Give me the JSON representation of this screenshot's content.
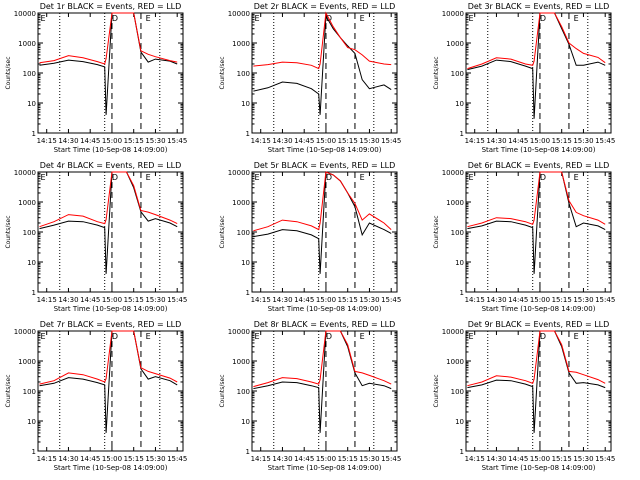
{
  "colors": {
    "events": "#000000",
    "lld": "#ff0000",
    "axis": "#000000",
    "background": "#ffffff"
  },
  "chart_data": [
    {
      "type": "line",
      "title": "Det 1r BLACK = Events, RED = LLD",
      "xlabel": "Start Time (10-Sep-08 14:09:00)",
      "ylabel": "Counts/sec",
      "y_scale": "log",
      "ylim": [
        1,
        10000
      ],
      "xlim": [
        "14:09",
        "15:49"
      ],
      "x_ticks": [
        "14:15",
        "14:30",
        "14:45",
        "15:00",
        "15:15",
        "15:30",
        "15:45"
      ],
      "y_ticks": [
        "1",
        "10",
        "100",
        "1000",
        "10000"
      ],
      "dotted_markers": [
        "14:24",
        "14:55",
        "15:33"
      ],
      "dashed_markers": [
        "15:00",
        "15:20"
      ],
      "annotations": [
        "E",
        "D",
        "E"
      ],
      "x": [
        "14:10",
        "14:20",
        "14:30",
        "14:40",
        "14:50",
        "14:55",
        "14:56",
        "15:00",
        "15:05",
        "15:10",
        "15:15",
        "15:20",
        "15:25",
        "15:30",
        "15:40",
        "15:45"
      ],
      "series": [
        {
          "values": [
            180,
            210,
            270,
            240,
            190,
            160,
            4,
            10000,
            10000,
            10000,
            10000,
            500,
            230,
            290,
            250,
            200
          ]
        },
        {
          "values": [
            220,
            260,
            380,
            320,
            240,
            200,
            300,
            10000,
            10000,
            10000,
            10000,
            550,
            420,
            350,
            260,
            230
          ]
        }
      ]
    },
    {
      "type": "line",
      "title": "Det 2r BLACK = Events, RED = LLD",
      "xlabel": "Start Time (10-Sep-08 14:09:00)",
      "ylabel": "Counts/sec",
      "y_scale": "log",
      "ylim": [
        1,
        10000
      ],
      "xlim": [
        "14:09",
        "15:49"
      ],
      "x_ticks": [
        "14:15",
        "14:30",
        "14:45",
        "15:00",
        "15:15",
        "15:30",
        "15:45"
      ],
      "y_ticks": [
        "1",
        "10",
        "100",
        "1000",
        "10000"
      ],
      "dotted_markers": [
        "14:24",
        "14:55",
        "15:33"
      ],
      "dashed_markers": [
        "15:00",
        "15:20"
      ],
      "annotations": [
        "E",
        "D",
        "E"
      ],
      "x": [
        "14:10",
        "14:20",
        "14:30",
        "14:40",
        "14:50",
        "14:55",
        "14:56",
        "15:00",
        "15:05",
        "15:10",
        "15:15",
        "15:20",
        "15:25",
        "15:30",
        "15:40",
        "15:45"
      ],
      "series": [
        {
          "values": [
            25,
            32,
            50,
            45,
            30,
            20,
            4,
            8000,
            3000,
            1500,
            800,
            450,
            60,
            30,
            40,
            28
          ]
        },
        {
          "values": [
            170,
            190,
            230,
            220,
            180,
            140,
            200,
            10000,
            3500,
            1500,
            700,
            600,
            400,
            250,
            200,
            190
          ]
        }
      ]
    },
    {
      "type": "line",
      "title": "Det 3r BLACK = Events, RED = LLD",
      "xlabel": "Start Time (10-Sep-08 14:09:00)",
      "ylabel": "Counts/sec",
      "y_scale": "log",
      "ylim": [
        1,
        10000
      ],
      "xlim": [
        "14:09",
        "15:49"
      ],
      "x_ticks": [
        "14:15",
        "14:30",
        "14:45",
        "15:00",
        "15:15",
        "15:30",
        "15:45"
      ],
      "y_ticks": [
        "1",
        "10",
        "100",
        "1000",
        "10000"
      ],
      "dotted_markers": [
        "14:24",
        "14:55",
        "15:33"
      ],
      "dashed_markers": [
        "15:00",
        "15:20"
      ],
      "annotations": [
        "E",
        "D",
        "E"
      ],
      "x": [
        "14:10",
        "14:20",
        "14:30",
        "14:40",
        "14:50",
        "14:55",
        "14:56",
        "15:00",
        "15:05",
        "15:10",
        "15:15",
        "15:20",
        "15:25",
        "15:30",
        "15:40",
        "15:45"
      ],
      "series": [
        {
          "values": [
            130,
            170,
            270,
            240,
            170,
            140,
            3,
            10000,
            10000,
            10000,
            3000,
            900,
            180,
            180,
            230,
            180
          ]
        },
        {
          "values": [
            140,
            200,
            320,
            290,
            200,
            180,
            250,
            10000,
            10000,
            10000,
            3500,
            1000,
            650,
            450,
            330,
            220
          ]
        }
      ]
    },
    {
      "type": "line",
      "title": "Det 4r BLACK = Events, RED = LLD",
      "xlabel": "Start Time (10-Sep-08 14:09:00)",
      "ylabel": "Counts/sec",
      "y_scale": "log",
      "ylim": [
        1,
        10000
      ],
      "xlim": [
        "14:09",
        "15:49"
      ],
      "x_ticks": [
        "14:15",
        "14:30",
        "14:45",
        "15:00",
        "15:15",
        "15:30",
        "15:45"
      ],
      "y_ticks": [
        "1",
        "10",
        "100",
        "1000",
        "10000"
      ],
      "dotted_markers": [
        "14:24",
        "14:55",
        "15:33"
      ],
      "dashed_markers": [
        "15:00",
        "15:20"
      ],
      "annotations": [
        "E",
        "D",
        "E"
      ],
      "x": [
        "14:10",
        "14:20",
        "14:30",
        "14:40",
        "14:50",
        "14:55",
        "14:56",
        "15:00",
        "15:05",
        "15:10",
        "15:15",
        "15:20",
        "15:25",
        "15:30",
        "15:40",
        "15:45"
      ],
      "series": [
        {
          "values": [
            130,
            170,
            230,
            220,
            170,
            140,
            4,
            10000,
            10000,
            10000,
            3000,
            470,
            230,
            280,
            200,
            150
          ]
        },
        {
          "values": [
            150,
            220,
            380,
            340,
            220,
            190,
            260,
            10000,
            10000,
            10000,
            3500,
            520,
            460,
            380,
            250,
            190
          ]
        }
      ]
    },
    {
      "type": "line",
      "title": "Det 5r BLACK = Events, RED = LLD",
      "xlabel": "Start Time (10-Sep-08 14:09:00)",
      "ylabel": "Counts/sec",
      "y_scale": "log",
      "ylim": [
        1,
        10000
      ],
      "xlim": [
        "14:09",
        "15:49"
      ],
      "x_ticks": [
        "14:15",
        "14:30",
        "14:45",
        "15:00",
        "15:15",
        "15:30",
        "15:45"
      ],
      "y_ticks": [
        "1",
        "10",
        "100",
        "1000",
        "10000"
      ],
      "dotted_markers": [
        "14:24",
        "14:55",
        "15:33"
      ],
      "dashed_markers": [
        "15:00",
        "15:20"
      ],
      "annotations": [
        "E",
        "D",
        "E"
      ],
      "x": [
        "14:10",
        "14:20",
        "14:30",
        "14:40",
        "14:50",
        "14:55",
        "14:56",
        "15:00",
        "15:05",
        "15:10",
        "15:15",
        "15:20",
        "15:25",
        "15:30",
        "15:40",
        "15:45"
      ],
      "series": [
        {
          "values": [
            70,
            85,
            120,
            110,
            80,
            60,
            4,
            10000,
            8000,
            5000,
            2000,
            700,
            80,
            200,
            120,
            90
          ]
        },
        {
          "values": [
            110,
            150,
            250,
            220,
            160,
            120,
            200,
            10000,
            8000,
            5000,
            2000,
            900,
            250,
            400,
            200,
            120
          ]
        }
      ]
    },
    {
      "type": "line",
      "title": "Det 6r BLACK = Events, RED = LLD",
      "xlabel": "Start Time (10-Sep-08 14:09:00)",
      "ylabel": "Counts/sec",
      "y_scale": "log",
      "ylim": [
        1,
        10000
      ],
      "xlim": [
        "14:09",
        "15:49"
      ],
      "x_ticks": [
        "14:15",
        "14:30",
        "14:45",
        "15:00",
        "15:15",
        "15:30",
        "15:45"
      ],
      "y_ticks": [
        "1",
        "10",
        "100",
        "1000",
        "10000"
      ],
      "dotted_markers": [
        "14:24",
        "14:55",
        "15:33"
      ],
      "dashed_markers": [
        "15:00",
        "15:20"
      ],
      "annotations": [
        "E",
        "D",
        "E"
      ],
      "x": [
        "14:10",
        "14:20",
        "14:30",
        "14:40",
        "14:50",
        "14:55",
        "14:56",
        "15:00",
        "15:05",
        "15:10",
        "15:15",
        "15:20",
        "15:25",
        "15:30",
        "15:40",
        "15:45"
      ],
      "series": [
        {
          "values": [
            130,
            160,
            230,
            220,
            170,
            140,
            4,
            10000,
            10000,
            10000,
            10000,
            900,
            150,
            200,
            160,
            120
          ]
        },
        {
          "values": [
            150,
            200,
            300,
            280,
            220,
            180,
            250,
            10000,
            10000,
            10000,
            10000,
            1100,
            450,
            350,
            250,
            180
          ]
        }
      ]
    },
    {
      "type": "line",
      "title": "Det 7r BLACK = Events, RED = LLD",
      "xlabel": "Start Time (10-Sep-08 14:09:00)",
      "ylabel": "Counts/sec",
      "y_scale": "log",
      "ylim": [
        1,
        10000
      ],
      "xlim": [
        "14:09",
        "15:49"
      ],
      "x_ticks": [
        "14:15",
        "14:30",
        "14:45",
        "15:00",
        "15:15",
        "15:30",
        "15:45"
      ],
      "y_ticks": [
        "1",
        "10",
        "100",
        "1000",
        "10000"
      ],
      "dotted_markers": [
        "14:24",
        "14:55",
        "15:33"
      ],
      "dashed_markers": [
        "15:00",
        "15:20"
      ],
      "annotations": [
        "E",
        "D",
        "E"
      ],
      "x": [
        "14:10",
        "14:20",
        "14:30",
        "14:40",
        "14:50",
        "14:55",
        "14:56",
        "15:00",
        "15:05",
        "15:10",
        "15:15",
        "15:20",
        "15:25",
        "15:30",
        "15:40",
        "15:45"
      ],
      "series": [
        {
          "values": [
            150,
            180,
            280,
            250,
            190,
            160,
            4,
            10000,
            10000,
            10000,
            10000,
            550,
            250,
            300,
            220,
            160
          ]
        },
        {
          "values": [
            170,
            220,
            400,
            350,
            250,
            200,
            260,
            10000,
            10000,
            10000,
            10000,
            600,
            450,
            380,
            270,
            200
          ]
        }
      ]
    },
    {
      "type": "line",
      "title": "Det 8r BLACK = Events, RED = LLD",
      "xlabel": "Start Time (10-Sep-08 14:09:00)",
      "ylabel": "Counts/sec",
      "y_scale": "log",
      "ylim": [
        1,
        10000
      ],
      "xlim": [
        "14:09",
        "15:49"
      ],
      "x_ticks": [
        "14:15",
        "14:30",
        "14:45",
        "15:00",
        "15:15",
        "15:30",
        "15:45"
      ],
      "y_ticks": [
        "1",
        "10",
        "100",
        "1000",
        "10000"
      ],
      "dotted_markers": [
        "14:24",
        "14:55",
        "15:33"
      ],
      "dashed_markers": [
        "15:00",
        "15:20"
      ],
      "annotations": [
        "E",
        "D",
        "E"
      ],
      "x": [
        "14:10",
        "14:20",
        "14:30",
        "14:40",
        "14:50",
        "14:55",
        "14:56",
        "15:00",
        "15:05",
        "15:10",
        "15:15",
        "15:20",
        "15:25",
        "15:30",
        "15:40",
        "15:45"
      ],
      "series": [
        {
          "values": [
            120,
            150,
            200,
            190,
            150,
            130,
            4,
            10000,
            10000,
            10000,
            3000,
            400,
            150,
            180,
            150,
            120
          ]
        },
        {
          "values": [
            140,
            190,
            280,
            260,
            200,
            170,
            240,
            10000,
            10000,
            10000,
            3500,
            450,
            400,
            330,
            220,
            170
          ]
        }
      ]
    },
    {
      "type": "line",
      "title": "Det 9r BLACK = Events, RED = LLD",
      "xlabel": "Start Time (10-Sep-08 14:09:00)",
      "ylabel": "Counts/sec",
      "y_scale": "log",
      "ylim": [
        1,
        10000
      ],
      "xlim": [
        "14:09",
        "15:49"
      ],
      "x_ticks": [
        "14:15",
        "14:30",
        "14:45",
        "15:00",
        "15:15",
        "15:30",
        "15:45"
      ],
      "y_ticks": [
        "1",
        "10",
        "100",
        "1000",
        "10000"
      ],
      "dotted_markers": [
        "14:24",
        "14:55",
        "15:33"
      ],
      "dashed_markers": [
        "15:00",
        "15:20"
      ],
      "annotations": [
        "E",
        "D",
        "E"
      ],
      "x": [
        "14:10",
        "14:20",
        "14:30",
        "14:40",
        "14:50",
        "14:55",
        "14:56",
        "15:00",
        "15:05",
        "15:10",
        "15:15",
        "15:20",
        "15:25",
        "15:30",
        "15:40",
        "15:45"
      ],
      "series": [
        {
          "values": [
            130,
            160,
            230,
            220,
            170,
            140,
            4,
            10000,
            10000,
            10000,
            3000,
            400,
            180,
            190,
            160,
            130
          ]
        },
        {
          "values": [
            150,
            200,
            320,
            290,
            220,
            180,
            250,
            10000,
            10000,
            10000,
            3500,
            450,
            420,
            350,
            240,
            180
          ]
        }
      ]
    }
  ]
}
